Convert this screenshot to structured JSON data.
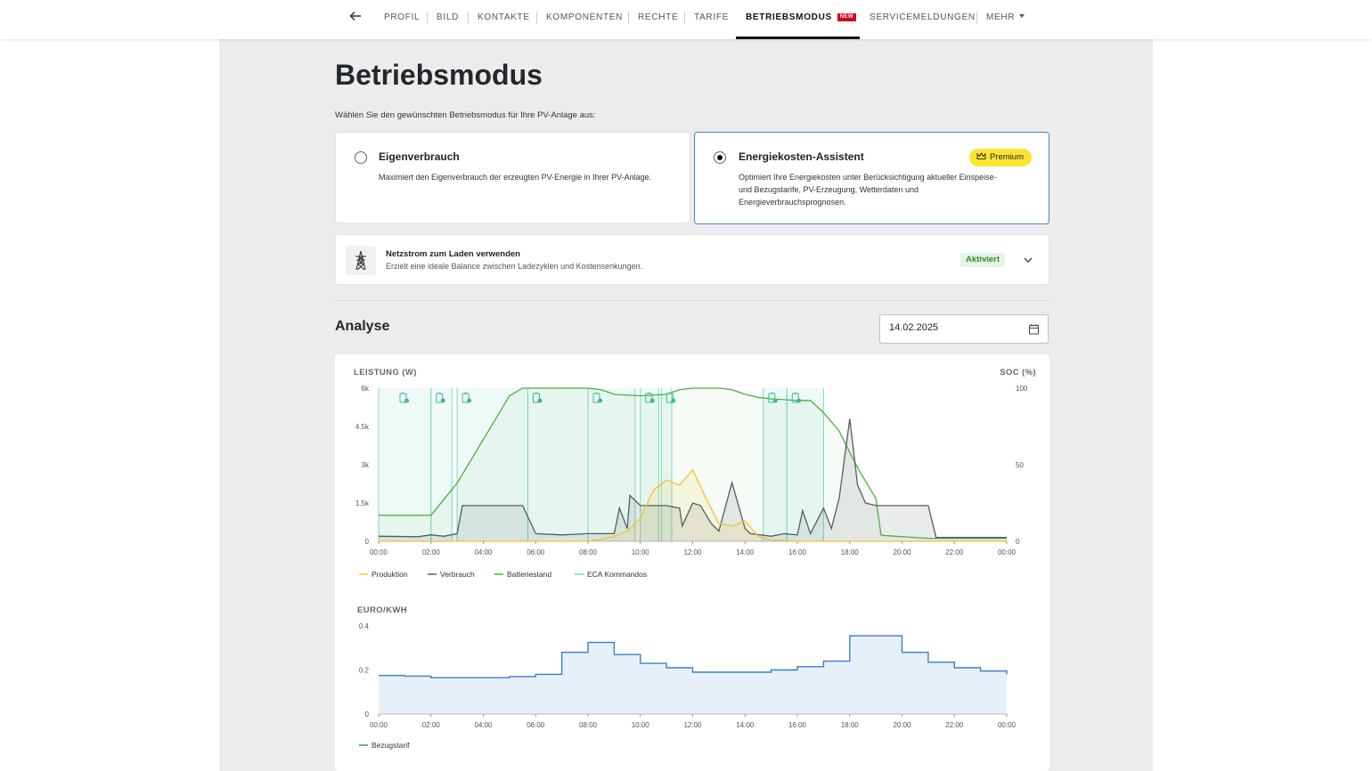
{
  "nav": {
    "items": [
      {
        "label": "PROFIL"
      },
      {
        "label": "BILD"
      },
      {
        "label": "KONTAKTE"
      },
      {
        "label": "KOMPONENTEN"
      },
      {
        "label": "RECHTE"
      },
      {
        "label": "TARIFE"
      },
      {
        "label": "BETRIEBSMODUS",
        "badge": "NEW",
        "active": true
      },
      {
        "label": "SERVICEMELDUNGEN"
      },
      {
        "label": "MEHR"
      }
    ]
  },
  "page": {
    "title": "Betriebsmodus",
    "subtitle": "Wählen Sie den gewünschten Betriebsmodus für Ihre PV-Anlage aus:"
  },
  "modes": {
    "eigen": {
      "title": "Eigenverbrauch",
      "desc": "Maximiert den Eigenverbrauch der erzeugten PV-Energie in Ihrer PV-Anlage.",
      "selected": false
    },
    "eca": {
      "title": "Energiekosten-Assistent",
      "badge": "Premium",
      "desc_lines": [
        "Optimiert Ihre Energiekosten unter Berücksichtigung aktueller Einspeise-",
        "und Bezugstarife, PV-Erzeugung, Wetterdaten und",
        "Energieverbrauchsprognosen."
      ],
      "selected": true
    }
  },
  "netzstrom": {
    "title": "Netzstrom zum Laden verwenden",
    "desc": "Erzielt eine ideale Balance zwischen Ladezyklen und Kostensenkungen.",
    "status": "Aktiviert"
  },
  "analyse": {
    "title": "Analyse",
    "date": "14.02.2025"
  },
  "colors": {
    "produktion": "#f2c230",
    "verbrauch": "#555b63",
    "batterie": "#4caf3c",
    "eca": "#7fd8c6",
    "bezug": "#3d7fc4",
    "accent_blue": "#3a88d6",
    "premium": "#fde334",
    "new_badge": "#d0021b"
  },
  "chart_data": [
    {
      "type": "line",
      "ylabel_left": "LEISTUNG (W)",
      "ylabel_right": "SOC (%)",
      "x_ticks": [
        "00:00",
        "02:00",
        "04:00",
        "06:00",
        "08:00",
        "10:00",
        "12:00",
        "14:00",
        "16:00",
        "18:00",
        "20:00",
        "22:00",
        "00:00"
      ],
      "y_ticks_left": [
        "0",
        "1.5k",
        "3k",
        "4.5k",
        "6k"
      ],
      "y_ticks_right": [
        "0",
        "50",
        "100"
      ],
      "ylim_left": [
        0,
        6000
      ],
      "ylim_right": [
        0,
        100
      ],
      "xlim_hours": [
        0,
        24
      ],
      "legend": [
        "Produktion",
        "Verbrauch",
        "Batteriestand",
        "ECA Kommandos"
      ],
      "series": [
        {
          "name": "Batteriestand",
          "axis": "right",
          "x": [
            0,
            2,
            3,
            5,
            5.5,
            7,
            8,
            8.5,
            9,
            10,
            11,
            11.5,
            12,
            13,
            13.5,
            14,
            14.5,
            15,
            16,
            16.5,
            17,
            17.3,
            17.6,
            18,
            18.4,
            19,
            19.2,
            20,
            21,
            22,
            23,
            24
          ],
          "y": [
            17,
            17,
            38,
            95,
            100,
            100,
            100,
            99,
            96,
            95,
            96,
            99,
            100,
            100,
            99,
            96,
            94,
            93,
            92,
            92,
            84,
            78,
            72,
            58,
            45,
            28,
            4,
            3,
            2,
            2,
            2,
            2
          ]
        },
        {
          "name": "Verbrauch",
          "axis": "left",
          "x": [
            0,
            1.5,
            2,
            2.5,
            3,
            3.2,
            5,
            5.5,
            6,
            7,
            8,
            9,
            9.2,
            9.5,
            9.6,
            10,
            10.3,
            11,
            11.5,
            11.6,
            12,
            12.3,
            12.7,
            13,
            13.5,
            14,
            14.2,
            15,
            15.5,
            16,
            16.2,
            16.5,
            17,
            17.3,
            17.6,
            18,
            18.3,
            18.6,
            19,
            19.5,
            20,
            21,
            21.3,
            22,
            23,
            24
          ],
          "y": [
            200,
            180,
            250,
            200,
            300,
            1400,
            1400,
            1400,
            300,
            250,
            300,
            300,
            1300,
            500,
            1800,
            1400,
            1400,
            1400,
            1300,
            600,
            1500,
            1400,
            700,
            400,
            2300,
            500,
            300,
            200,
            300,
            250,
            1200,
            300,
            1300,
            500,
            1700,
            4800,
            2200,
            1500,
            1400,
            1400,
            1400,
            1400,
            150,
            150,
            150,
            150
          ]
        },
        {
          "name": "Produktion",
          "axis": "left",
          "x": [
            0,
            8,
            8.5,
            9,
            9.5,
            10,
            10.5,
            11,
            11.5,
            12,
            12.5,
            13,
            13.5,
            14,
            14.5,
            15,
            16,
            24
          ],
          "y": [
            0,
            0,
            80,
            200,
            400,
            900,
            2000,
            2400,
            2200,
            2800,
            1700,
            700,
            600,
            800,
            200,
            50,
            0,
            0
          ]
        },
        {
          "name": "ECA Kommandos",
          "type": "intervals",
          "intervals_hours": [
            [
              0,
              2
            ],
            [
              2,
              2.8
            ],
            [
              3,
              5.7
            ],
            [
              5.7,
              8
            ],
            [
              8,
              9.8
            ],
            [
              10,
              10.7
            ],
            [
              10.8,
              11.2
            ],
            [
              14.7,
              15.6
            ],
            [
              15.6,
              17.0
            ]
          ]
        }
      ]
    },
    {
      "type": "area",
      "ylabel": "EURO/KWH",
      "x_ticks": [
        "00:00",
        "02:00",
        "04:00",
        "06:00",
        "08:00",
        "10:00",
        "12:00",
        "14:00",
        "16:00",
        "18:00",
        "20:00",
        "22:00",
        "00:00"
      ],
      "y_ticks": [
        "0",
        "0.2",
        "0.4"
      ],
      "ylim": [
        0,
        0.4
      ],
      "legend": [
        "Bezugstarif"
      ],
      "series": [
        {
          "name": "Bezugstarif",
          "step": true,
          "x": [
            0,
            1,
            2,
            3,
            4,
            5,
            6,
            7,
            8,
            9,
            10,
            11,
            12,
            13,
            14,
            15,
            16,
            17,
            18,
            19,
            20,
            21,
            22,
            23,
            24
          ],
          "y": [
            0.175,
            0.172,
            0.165,
            0.165,
            0.165,
            0.17,
            0.18,
            0.28,
            0.325,
            0.27,
            0.23,
            0.21,
            0.19,
            0.19,
            0.19,
            0.2,
            0.215,
            0.24,
            0.355,
            0.355,
            0.28,
            0.235,
            0.21,
            0.195,
            0.18
          ]
        }
      ]
    }
  ]
}
